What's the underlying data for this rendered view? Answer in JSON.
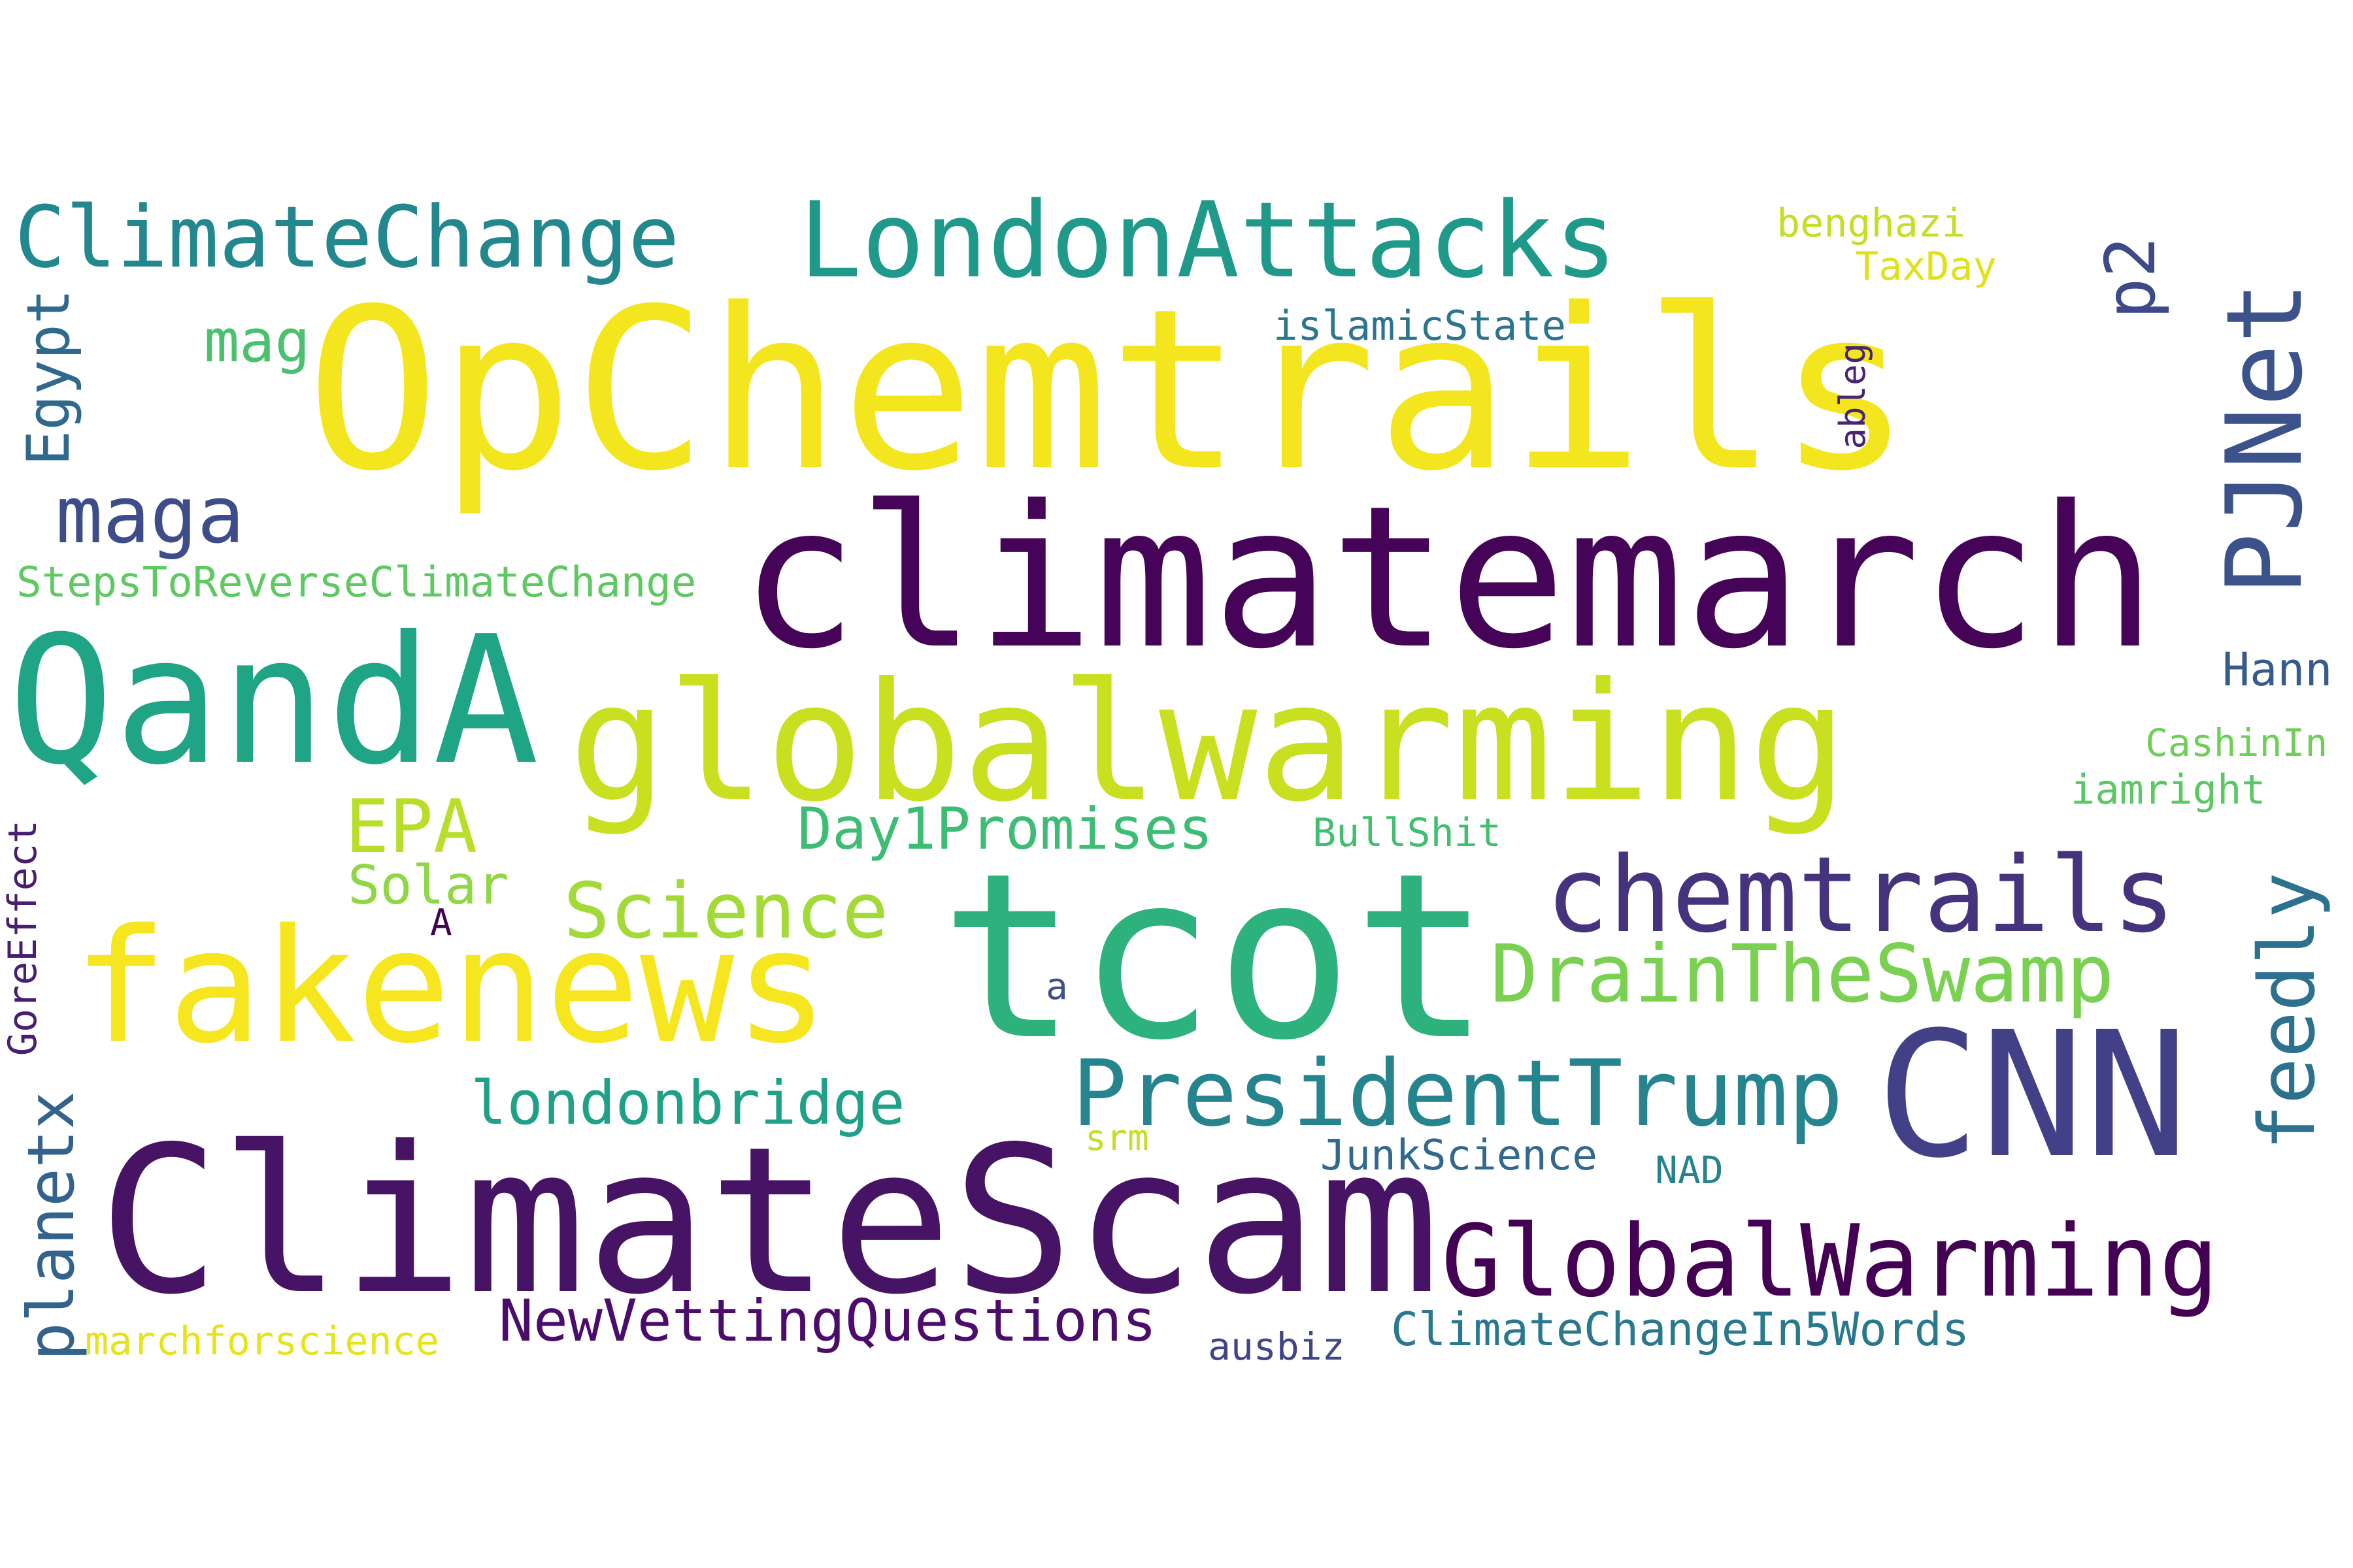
{
  "words": [
    {
      "text": "OpChemtrails",
      "color": "#f4e61e"
    },
    {
      "text": "climatemarch",
      "color": "#450457"
    },
    {
      "text": "tcot",
      "color": "#2db27d"
    },
    {
      "text": "ClimateScam",
      "color": "#471365"
    },
    {
      "text": "globalwarming",
      "color": "#c8e020"
    },
    {
      "text": "QandA",
      "color": "#20a486"
    },
    {
      "text": "fakenews",
      "color": "#f6e620"
    },
    {
      "text": "CNN",
      "color": "#424086"
    },
    {
      "text": "LondonAttacks",
      "color": "#1f9a8a"
    },
    {
      "text": "ClimateChange",
      "color": "#23888e"
    },
    {
      "text": "chemtrails",
      "color": "#46337e"
    },
    {
      "text": "GlobalWarming",
      "color": "#440154"
    },
    {
      "text": "PresidentTrump",
      "color": "#25848e"
    },
    {
      "text": "PJNet",
      "color": "#3b528b"
    },
    {
      "text": "DrainTheSwamp",
      "color": "#7ad151"
    },
    {
      "text": "feedly",
      "color": "#2c718e"
    },
    {
      "text": "Science",
      "color": "#a2da37"
    },
    {
      "text": "maga",
      "color": "#3e4c8a"
    },
    {
      "text": "EPA",
      "color": "#b8de29"
    },
    {
      "text": "NewVettingQuestions",
      "color": "#4b0c6b"
    },
    {
      "text": "londonbridge",
      "color": "#1fa187"
    },
    {
      "text": "Day1Promises",
      "color": "#3dbc74"
    },
    {
      "text": "p2",
      "color": "#3e4989"
    },
    {
      "text": "planetx",
      "color": "#33638d"
    },
    {
      "text": "Egypt",
      "color": "#30698e"
    },
    {
      "text": "ClimateChangeIn5Words",
      "color": "#2a788e"
    },
    {
      "text": "mag",
      "color": "#4ac16d"
    },
    {
      "text": "StepsToReverseClimateChange",
      "color": "#5ec962"
    },
    {
      "text": "Solar",
      "color": "#8fd744"
    },
    {
      "text": "JunkScience",
      "color": "#31688e"
    },
    {
      "text": "Hann",
      "color": "#365c8d"
    },
    {
      "text": "islamicState",
      "color": "#2b758e"
    },
    {
      "text": "benghazi",
      "color": "#c2df23"
    },
    {
      "text": "CashinIn",
      "color": "#6ece58"
    },
    {
      "text": "iamright",
      "color": "#5ac864"
    },
    {
      "text": "BullShit",
      "color": "#42be71"
    },
    {
      "text": "TaxDay",
      "color": "#dde318"
    },
    {
      "text": "GoreEffect",
      "color": "#481f70"
    },
    {
      "text": "marchforscience",
      "color": "#e5e419"
    },
    {
      "text": "ausbiz",
      "color": "#404588"
    },
    {
      "text": "NAD",
      "color": "#26828e"
    },
    {
      "text": "srm",
      "color": "#c0df25"
    },
    {
      "text": "ableg",
      "color": "#482475"
    },
    {
      "text": "A",
      "color": "#440154"
    },
    {
      "text": "a",
      "color": "#3b528b"
    }
  ]
}
